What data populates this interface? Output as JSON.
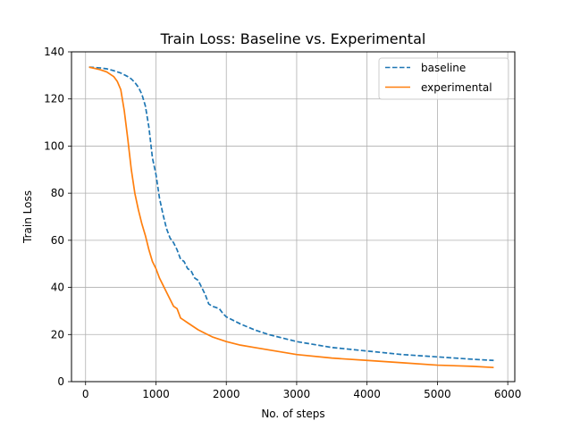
{
  "chart_data": {
    "type": "line",
    "title": "Train Loss: Baseline vs. Experimental",
    "xlabel": "No. of steps",
    "ylabel": "Train Loss",
    "xlim": [
      -200,
      6100
    ],
    "ylim": [
      0,
      140
    ],
    "xticks": [
      0,
      1000,
      2000,
      3000,
      4000,
      5000,
      6000
    ],
    "yticks": [
      0,
      20,
      40,
      60,
      80,
      100,
      120,
      140
    ],
    "grid": true,
    "legend_position": "top-right",
    "series": [
      {
        "name": "baseline",
        "color": "#1f77b4",
        "linestyle": "dashed",
        "x": [
          50,
          200,
          300,
          400,
          500,
          600,
          650,
          700,
          750,
          800,
          850,
          900,
          950,
          1000,
          1050,
          1100,
          1150,
          1200,
          1250,
          1300,
          1350,
          1400,
          1450,
          1500,
          1550,
          1600,
          1650,
          1700,
          1750,
          1800,
          1850,
          1900,
          1950,
          2000,
          2200,
          2400,
          2600,
          2800,
          3000,
          3500,
          4000,
          4500,
          5000,
          5500,
          5800
        ],
        "y": [
          133.5,
          133.2,
          132.8,
          132,
          131,
          129.5,
          128.5,
          127,
          125,
          122,
          117,
          108,
          95,
          88,
          78,
          71,
          65,
          61,
          59,
          56,
          52,
          51,
          48,
          47,
          44,
          43,
          40,
          37,
          33,
          32,
          31.5,
          31,
          29,
          27.5,
          24.5,
          22,
          20,
          18.5,
          17,
          14.5,
          13,
          11.5,
          10.5,
          9.5,
          9
        ]
      },
      {
        "name": "experimental",
        "color": "#ff7f0e",
        "linestyle": "solid",
        "x": [
          50,
          200,
          300,
          400,
          450,
          500,
          550,
          600,
          650,
          700,
          750,
          800,
          850,
          900,
          950,
          1000,
          1050,
          1100,
          1150,
          1200,
          1250,
          1300,
          1350,
          1400,
          1450,
          1500,
          1550,
          1600,
          1700,
          1800,
          1900,
          2000,
          2200,
          2400,
          2600,
          2800,
          3000,
          3500,
          4000,
          4500,
          5000,
          5500,
          5800
        ],
        "y": [
          133.5,
          132.5,
          131.5,
          129.5,
          127.5,
          124,
          115,
          103,
          90,
          80,
          73,
          67,
          62,
          56,
          51,
          48,
          44,
          41,
          38,
          35,
          32,
          31,
          27,
          26,
          25,
          24,
          23,
          22,
          20.5,
          19,
          18,
          17,
          15.5,
          14.5,
          13.5,
          12.5,
          11.5,
          10,
          9,
          8,
          7,
          6.5,
          6
        ]
      }
    ]
  }
}
